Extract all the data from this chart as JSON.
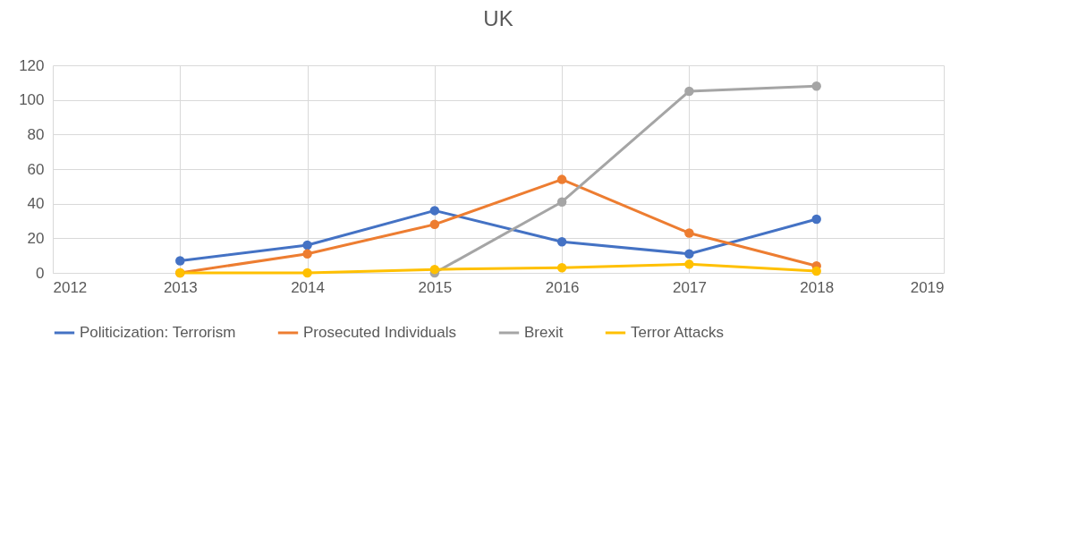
{
  "chart_data": {
    "type": "line",
    "title": "UK",
    "x": [
      2013,
      2014,
      2015,
      2016,
      2017,
      2018
    ],
    "series": [
      {
        "name": "Politicization: Terrorism",
        "color": "#4472c4",
        "values": [
          7,
          16,
          36,
          18,
          11,
          31
        ]
      },
      {
        "name": "Prosecuted Individuals",
        "color": "#ed7d31",
        "values": [
          0,
          11,
          28,
          54,
          23,
          4
        ]
      },
      {
        "name": "Brexit",
        "color": "#a5a5a5",
        "values": [
          null,
          null,
          0,
          41,
          105,
          108
        ]
      },
      {
        "name": "Terror Attacks",
        "color": "#ffc000",
        "values": [
          0,
          0,
          2,
          3,
          5,
          1
        ]
      }
    ],
    "xlim": [
      2012,
      2019
    ],
    "xticks": [
      2012,
      2013,
      2014,
      2015,
      2016,
      2017,
      2018,
      2019
    ],
    "ylim": [
      0,
      120
    ],
    "yticks": [
      0,
      20,
      40,
      60,
      80,
      100,
      120
    ],
    "grid": true,
    "legend": "bottom",
    "marker": "circle",
    "line_style": "solid"
  }
}
